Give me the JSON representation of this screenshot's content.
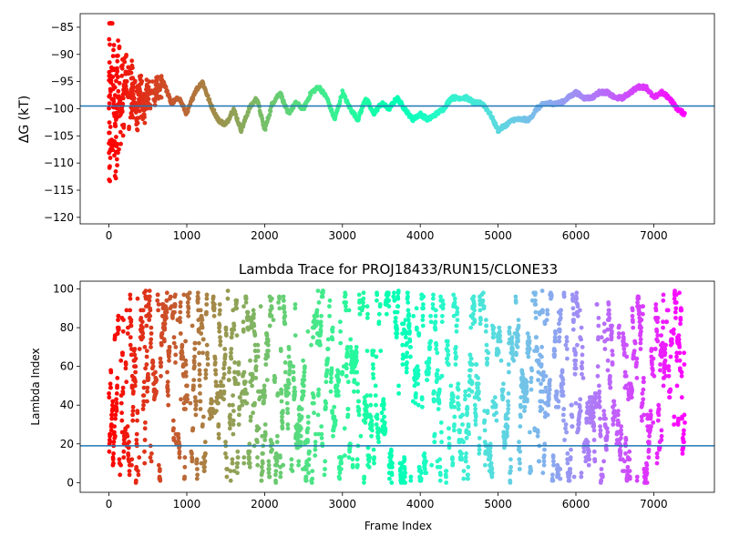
{
  "chart_data": [
    {
      "type": "scatter",
      "title": "",
      "xlabel": "",
      "ylabel": "ΔG (kT)",
      "xlim": [
        -370,
        7780
      ],
      "ylim": [
        -121.2,
        -82.5
      ],
      "xticks": [
        0,
        1000,
        2000,
        3000,
        4000,
        5000,
        6000,
        7000
      ],
      "xtick_labels": [
        "0",
        "1000",
        "2000",
        "3000",
        "4000",
        "5000",
        "6000",
        "7000"
      ],
      "yticks": [
        -120,
        -115,
        -110,
        -105,
        -100,
        -95,
        -90,
        -85
      ],
      "ytick_labels": [
        "−120",
        "−115",
        "−110",
        "−105",
        "−100",
        "−95",
        "−90",
        "−85"
      ],
      "hline": -99.5,
      "hline_color": "#1f77b4",
      "colormap": "rainbow (color reversed with frame index: red at frame 0, violet at frame ~7400)",
      "grid": false,
      "series": [
        {
          "trace_x": [
            0,
            40,
            80,
            120,
            160,
            200,
            250,
            300,
            350,
            400,
            450,
            500,
            600,
            700,
            800,
            900,
            1000,
            1100,
            1200,
            1300,
            1400,
            1500,
            1600,
            1700,
            1800,
            1900,
            2000,
            2100,
            2200,
            2300,
            2400,
            2500,
            2600,
            2700,
            2800,
            2900,
            3000,
            3100,
            3200,
            3300,
            3400,
            3500,
            3600,
            3700,
            3800,
            3900,
            4000,
            4100,
            4200,
            4300,
            4400,
            4500,
            4600,
            4700,
            4800,
            4900,
            5000,
            5100,
            5200,
            5300,
            5400,
            5500,
            5600,
            5700,
            5800,
            5900,
            6000,
            6100,
            6200,
            6300,
            6400,
            6500,
            6600,
            6700,
            6800,
            6900,
            7000,
            7100,
            7200,
            7300,
            7400
          ],
          "trace_y": [
            -100,
            -92,
            -104,
            -97,
            -100,
            -95,
            -98,
            -96,
            -101,
            -97,
            -100,
            -97,
            -97,
            -95,
            -99,
            -98,
            -101,
            -97,
            -95,
            -99,
            -102,
            -103,
            -100,
            -104,
            -100,
            -98,
            -104,
            -99,
            -97,
            -101,
            -99,
            -100,
            -97,
            -96,
            -98,
            -102,
            -97,
            -100,
            -102,
            -98,
            -101,
            -99,
            -100,
            -98,
            -100,
            -102,
            -101,
            -102,
            -101,
            -100,
            -98,
            -98,
            -98,
            -99,
            -99,
            -101,
            -104,
            -103,
            -102,
            -102,
            -102,
            -100,
            -99,
            -99,
            -99,
            -98,
            -97,
            -98,
            -98,
            -97,
            -97,
            -98,
            -98,
            -97,
            -96,
            -96,
            -98,
            -97,
            -98,
            -100,
            -101
          ]
        }
      ]
    },
    {
      "type": "scatter",
      "title": "Lambda Trace for PROJ18433/RUN15/CLONE33",
      "xlabel": "Frame Index",
      "ylabel": "Lambda Index",
      "xlim": [
        -370,
        7780
      ],
      "ylim": [
        -5,
        104
      ],
      "xticks": [
        0,
        1000,
        2000,
        3000,
        4000,
        5000,
        6000,
        7000
      ],
      "xtick_labels": [
        "0",
        "1000",
        "2000",
        "3000",
        "4000",
        "5000",
        "6000",
        "7000"
      ],
      "yticks": [
        0,
        20,
        40,
        60,
        80,
        100
      ],
      "ytick_labels": [
        "0",
        "20",
        "40",
        "60",
        "80",
        "100"
      ],
      "hline": 19,
      "hline_color": "#1f77b4",
      "colormap": "rainbow (color reversed with frame index: red at frame 0, violet at frame ~7400)",
      "grid": false,
      "series": [
        {
          "x_range": [
            0,
            7400
          ],
          "y_range": [
            0,
            99
          ]
        }
      ]
    }
  ]
}
